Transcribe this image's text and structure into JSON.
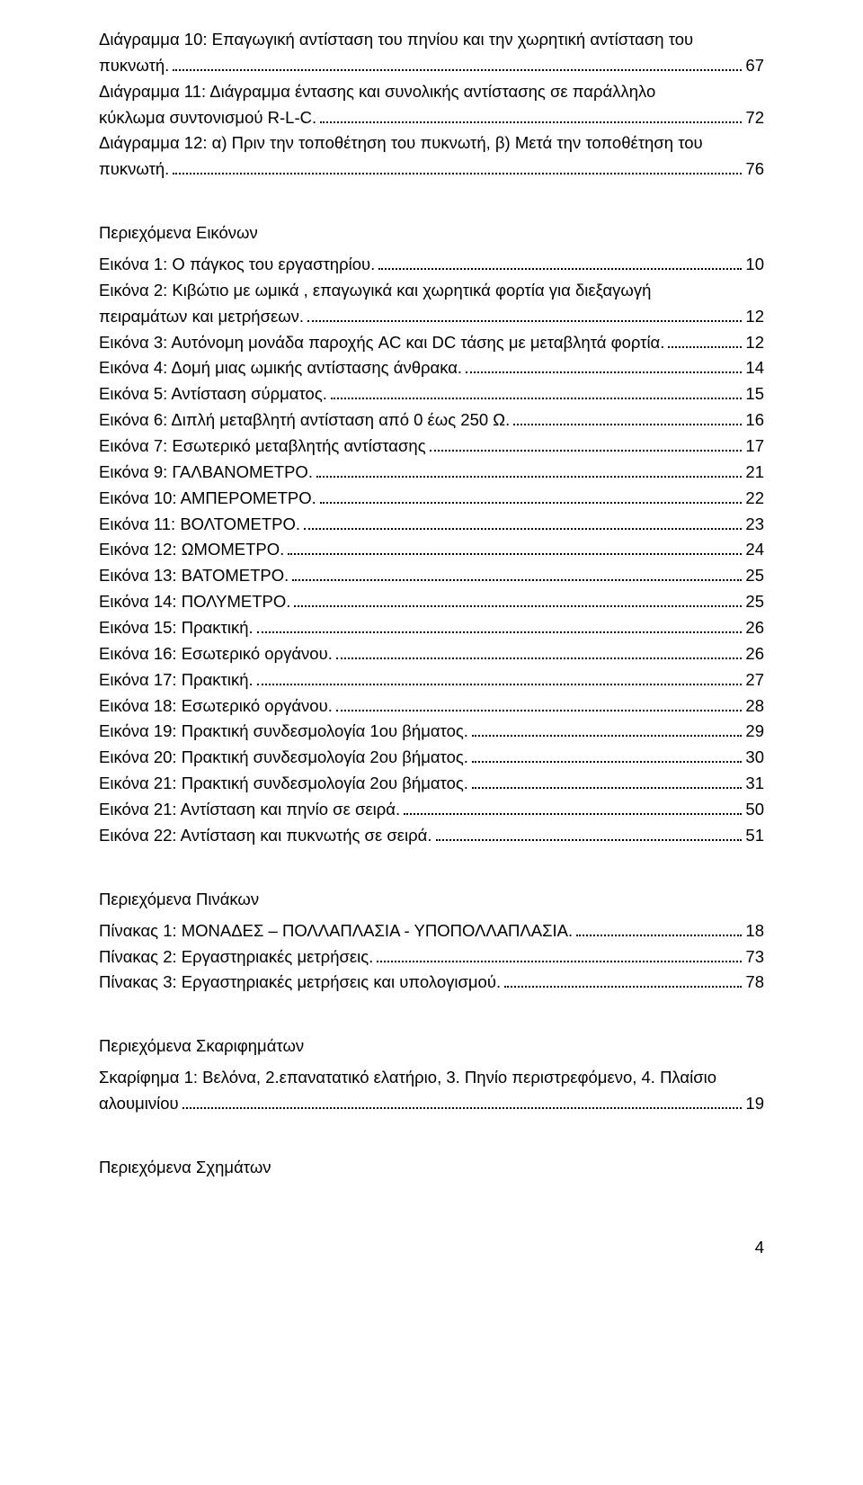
{
  "typography": {
    "font_family": "Arial",
    "font_size_pt": 14,
    "line_height": 1.56,
    "color": "#000000",
    "background": "#ffffff"
  },
  "diagrams_cont": [
    {
      "text_lines": [
        "Διάγραμμα 10: Επαγωγική αντίσταση του πηνίου και την χωρητική αντίσταση του",
        "πυκνωτή."
      ],
      "page": "67"
    },
    {
      "text_lines": [
        "Διάγραμμα 11: Διάγραμμα έντασης και συνολικής αντίστασης σε παράλληλο",
        "κύκλωμα συντονισμού R-L-C."
      ],
      "page": "72"
    },
    {
      "text_lines": [
        "Διάγραμμα 12: α) Πριν την τοποθέτηση του πυκνωτή, β) Μετά την τοποθέτηση του",
        "πυκνωτή."
      ],
      "page": "76"
    }
  ],
  "images_title": "Περιεχόμενα Εικόνων",
  "images": [
    {
      "text_lines": [
        "Εικόνα 1: Ο πάγκος του εργαστηρίου."
      ],
      "page": "10"
    },
    {
      "text_lines": [
        "Εικόνα 2: Κιβώτιο με ωμικά , επαγωγικά και χωρητικά φορτία για διεξαγωγή",
        "πειραμάτων και μετρήσεων."
      ],
      "page": "12"
    },
    {
      "text_lines": [
        "Εικόνα 3: Αυτόνομη μονάδα παροχής AC και DC τάσης με μεταβλητά φορτία."
      ],
      "page": "12"
    },
    {
      "text_lines": [
        "Εικόνα 4: Δομή μιας ωμικής αντίστασης άνθρακα."
      ],
      "page": "14"
    },
    {
      "text_lines": [
        "Εικόνα 5: Αντίσταση σύρματος."
      ],
      "page": "15"
    },
    {
      "text_lines": [
        "Εικόνα 6: Διπλή μεταβλητή αντίσταση από 0 έως 250 Ω."
      ],
      "page": "16"
    },
    {
      "text_lines": [
        "Εικόνα 7: Εσωτερικό μεταβλητής αντίστασης"
      ],
      "page": "17"
    },
    {
      "text_lines": [
        "Εικόνα 9: ΓΑΛΒΑΝΟΜΕΤΡΟ."
      ],
      "page": "21"
    },
    {
      "text_lines": [
        "Εικόνα 10: ΑΜΠΕΡΟΜΕΤΡΟ."
      ],
      "page": "22"
    },
    {
      "text_lines": [
        "Εικόνα 11: ΒΟΛΤΟΜΕΤΡΟ."
      ],
      "page": "23"
    },
    {
      "text_lines": [
        "Εικόνα 12: ΩΜΟΜΕΤΡΟ."
      ],
      "page": "24"
    },
    {
      "text_lines": [
        "Εικόνα 13: ΒΑΤΟΜΕΤΡΟ."
      ],
      "page": "25"
    },
    {
      "text_lines": [
        "Εικόνα 14: ΠΟΛΥΜΕΤΡΟ."
      ],
      "page": "25"
    },
    {
      "text_lines": [
        "Εικόνα 15: Πρακτική."
      ],
      "page": "26"
    },
    {
      "text_lines": [
        "Εικόνα 16: Εσωτερικό οργάνου."
      ],
      "page": "26"
    },
    {
      "text_lines": [
        "Εικόνα 17: Πρακτική."
      ],
      "page": "27"
    },
    {
      "text_lines": [
        "Εικόνα 18: Εσωτερικό οργάνου."
      ],
      "page": "28"
    },
    {
      "text_lines": [
        "Εικόνα 19: Πρακτική συνδεσμολογία 1ου βήματος."
      ],
      "page": "29"
    },
    {
      "text_lines": [
        "Εικόνα 20: Πρακτική συνδεσμολογία 2ου βήματος."
      ],
      "page": "30"
    },
    {
      "text_lines": [
        "Εικόνα 21: Πρακτική συνδεσμολογία 2ου βήματος."
      ],
      "page": "31"
    },
    {
      "text_lines": [
        "Εικόνα 21: Αντίσταση και πηνίο σε σειρά."
      ],
      "page": "50"
    },
    {
      "text_lines": [
        "Εικόνα 22: Αντίσταση και πυκνωτής σε σειρά."
      ],
      "page": "51"
    }
  ],
  "tables_title": "Περιεχόμενα Πινάκων",
  "tables": [
    {
      "text_lines": [
        "Πίνακας 1: ΜΟΝΑΔΕΣ – ΠΟΛΛΑΠΛΑΣΙΑ - ΥΠΟΠΟΛΛΑΠΛΑΣΙΑ."
      ],
      "page": "18"
    },
    {
      "text_lines": [
        "Πίνακας 2: Εργαστηριακές μετρήσεις."
      ],
      "page": "73"
    },
    {
      "text_lines": [
        "Πίνακας 3: Εργαστηριακές μετρήσεις και υπολογισμού."
      ],
      "page": "78"
    }
  ],
  "sketches_title": "Περιεχόμενα Σκαριφημάτων",
  "sketches": [
    {
      "text_lines": [
        "Σκαρίφημα  1: Βελόνα, 2.επανατατικό ελατήριο, 3. Πηνίο περιστρεφόμενο, 4. Πλαίσιο",
        "αλουμινίου"
      ],
      "page": "19"
    }
  ],
  "schemas_title": "Περιεχόμενα Σχημάτων",
  "footer_page": "4"
}
